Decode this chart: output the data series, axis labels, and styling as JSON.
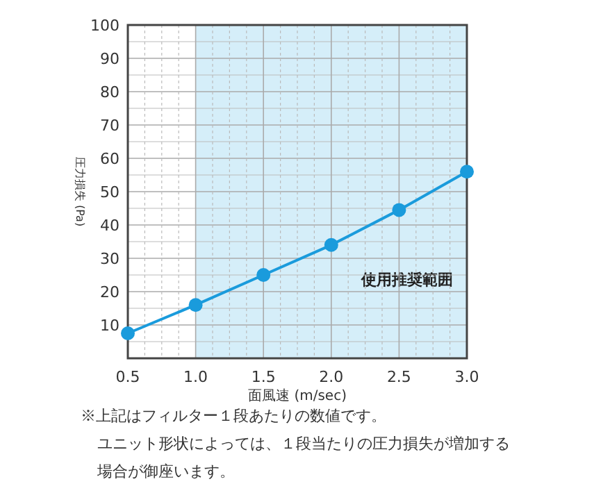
{
  "chart_data": {
    "type": "line",
    "xlabel": "面風速 (m/sec)",
    "ylabel": "圧力損失 (Pa)",
    "x": [
      0.5,
      1,
      1.5,
      2,
      2.5,
      3
    ],
    "series": [
      {
        "color": "#1a9bdc",
        "values": [
          7.5,
          16,
          25,
          34,
          44.5,
          56
        ]
      }
    ],
    "xlim": [
      0.5,
      3
    ],
    "ylim": [
      0,
      100
    ],
    "xticks": [
      {
        "value": 0.5,
        "label": "0.5"
      },
      {
        "value": 1,
        "label": "1.0"
      },
      {
        "value": 1.5,
        "label": "1.5"
      },
      {
        "value": 2,
        "label": "2.0"
      },
      {
        "value": 2.5,
        "label": "2.5"
      },
      {
        "value": 3,
        "label": "3.0"
      }
    ],
    "yticks": [
      {
        "value": 0,
        "label": null
      },
      10,
      20,
      30,
      40,
      50,
      60,
      70,
      80,
      90,
      100
    ],
    "grid": true,
    "marker": "circle",
    "line_style": "solid",
    "bands": [
      {
        "axis": "x",
        "from": 1,
        "to": 3,
        "label": "使用推奨範囲",
        "color": "#d5eef9"
      }
    ],
    "annotations": [
      "※上記はフィルター１段あたりの数値です。",
      "ユニット形状によっては、１段当たりの圧力損失が増加する",
      "場合が御座います。"
    ]
  }
}
